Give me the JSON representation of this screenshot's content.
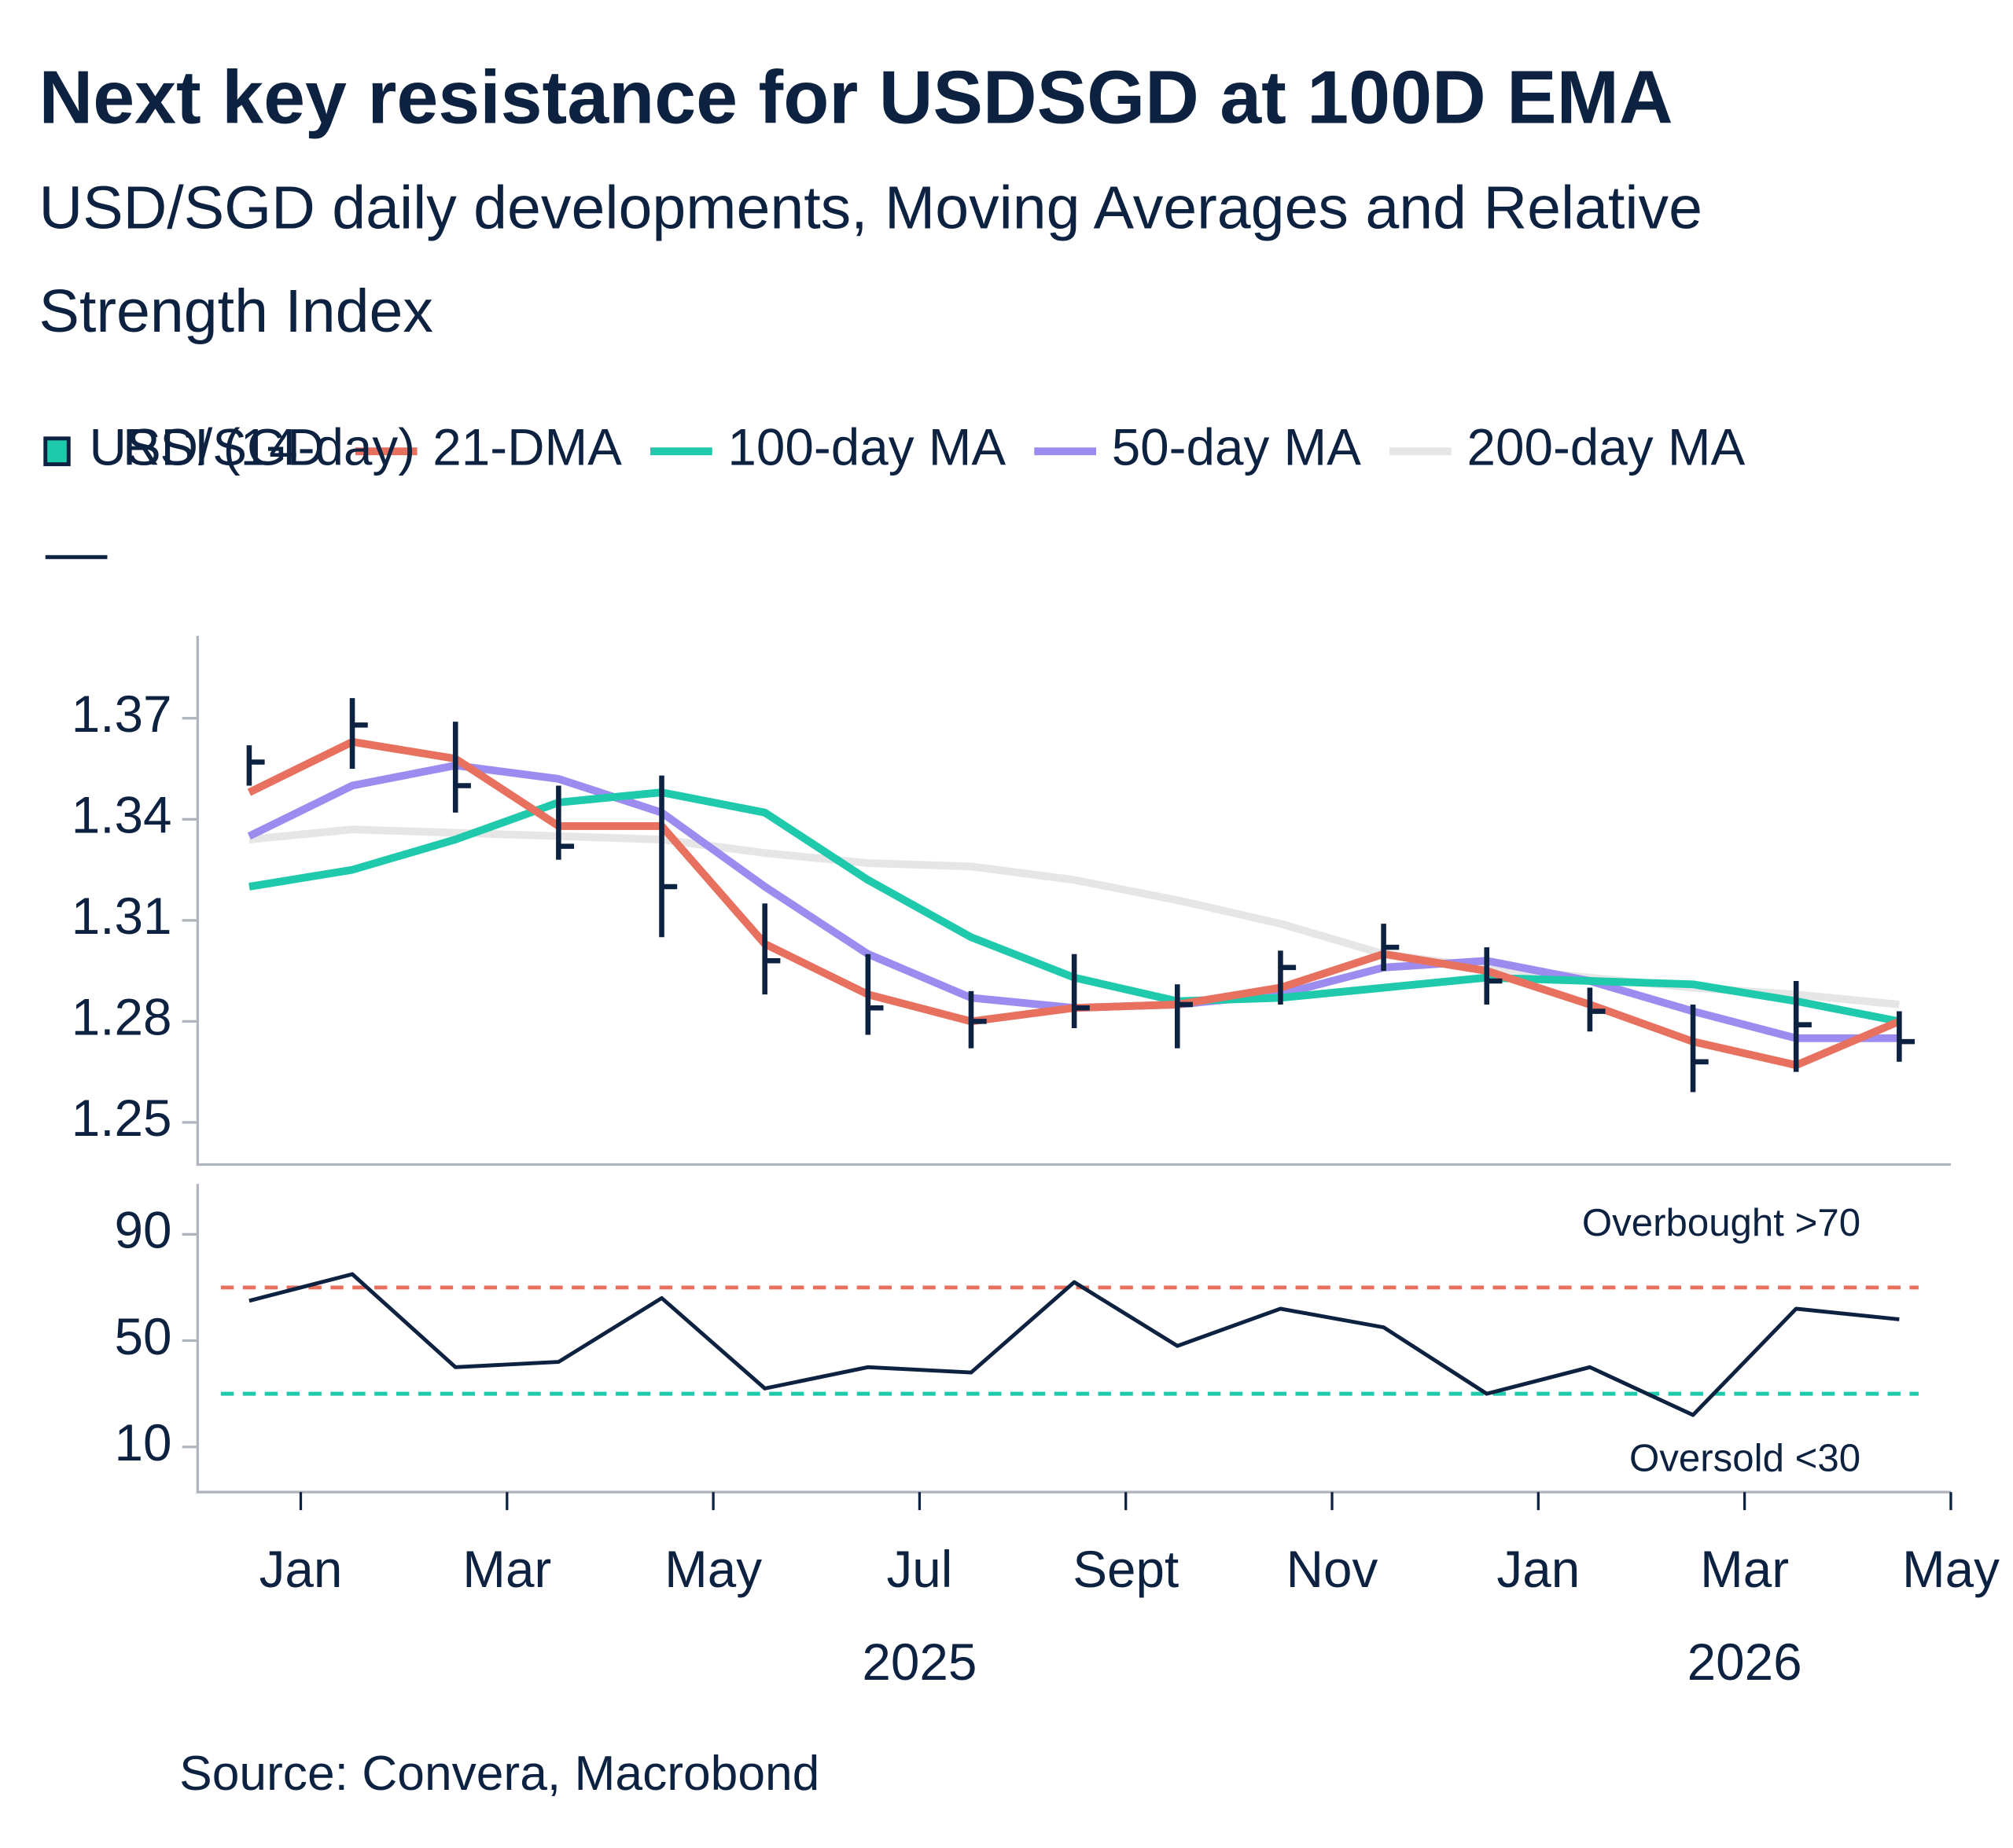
{
  "chart_data": [
    {
      "type": "ohlc",
      "title": "Next key resistance for USDSGD at 100D EMA",
      "subtitle": "USD/SGD daily developments, Moving Averages and Relative Strength Index",
      "source": "Source: Convera, Macrobond",
      "x": [
        "2024-12",
        "2025-01",
        "2025-02",
        "2025-03",
        "2025-04",
        "2025-05",
        "2025-06",
        "2025-07",
        "2025-08",
        "2025-09",
        "2025-10",
        "2025-11",
        "2025-12",
        "2026-01",
        "2026-02",
        "2026-03",
        "2026-04"
      ],
      "xlim": [
        "2024-12",
        "2026-05"
      ],
      "ylim": [
        1.2375,
        1.3945
      ],
      "yticks": [
        1.25,
        1.28,
        1.31,
        1.34,
        1.37
      ],
      "series": [
        {
          "name": "USD/SGD",
          "type": "ohlc",
          "color": "#0d2240",
          "high": [
            1.362,
            1.376,
            1.369,
            1.35,
            1.353,
            1.315,
            1.3,
            1.289,
            1.3,
            1.291,
            1.301,
            1.309,
            1.302,
            1.29,
            1.285,
            1.292,
            1.283
          ],
          "low": [
            1.35,
            1.355,
            1.342,
            1.328,
            1.305,
            1.288,
            1.276,
            1.272,
            1.278,
            1.272,
            1.285,
            1.295,
            1.285,
            1.277,
            1.259,
            1.265,
            1.268
          ],
          "close": [
            1.357,
            1.368,
            1.35,
            1.332,
            1.32,
            1.298,
            1.284,
            1.28,
            1.284,
            1.285,
            1.296,
            1.302,
            1.292,
            1.283,
            1.268,
            1.279,
            1.274
          ]
        },
        {
          "name": "21-DMA",
          "type": "line",
          "color": "#e8705f",
          "values": [
            1.348,
            1.363,
            1.358,
            1.338,
            1.338,
            1.303,
            1.288,
            1.28,
            1.284,
            1.285,
            1.29,
            1.3,
            1.295,
            1.285,
            1.274,
            1.267,
            1.28
          ]
        },
        {
          "name": "100-day MA",
          "type": "line",
          "color": "#1fc9ab",
          "values": [
            1.32,
            1.325,
            1.334,
            1.345,
            1.348,
            1.342,
            1.322,
            1.305,
            1.293,
            1.286,
            1.287,
            1.29,
            1.293,
            1.292,
            1.291,
            1.286,
            1.28
          ]
        },
        {
          "name": "50-day MA",
          "type": "line",
          "color": "#9c8cf0",
          "values": [
            1.335,
            1.35,
            1.356,
            1.352,
            1.342,
            1.32,
            1.3,
            1.287,
            1.284,
            1.285,
            1.288,
            1.296,
            1.298,
            1.292,
            1.283,
            1.275,
            1.275
          ]
        },
        {
          "name": "200-day MA",
          "type": "line",
          "color": "#e6e6e6",
          "values": [
            1.334,
            1.337,
            1.336,
            1.335,
            1.334,
            1.33,
            1.327,
            1.326,
            1.322,
            1.316,
            1.309,
            1.3,
            1.296,
            1.293,
            1.29,
            1.288,
            1.285
          ]
        }
      ]
    },
    {
      "type": "line",
      "x": [
        "2024-12",
        "2025-01",
        "2025-02",
        "2025-03",
        "2025-04",
        "2025-05",
        "2025-06",
        "2025-07",
        "2025-08",
        "2025-09",
        "2025-10",
        "2025-11",
        "2025-12",
        "2026-01",
        "2026-02",
        "2026-03",
        "2026-04"
      ],
      "xlim": [
        "2024-12",
        "2026-05"
      ],
      "ylim": [
        -7,
        109
      ],
      "yticks": [
        10,
        50,
        90
      ],
      "xticks": [
        {
          "value": "2025-01",
          "label": "Jan"
        },
        {
          "value": "2025-03",
          "label": "Mar"
        },
        {
          "value": "2025-05",
          "label": "May"
        },
        {
          "value": "2025-07",
          "label": "Jul"
        },
        {
          "value": "2025-09",
          "label": "Sept"
        },
        {
          "value": "2025-11",
          "label": "Nov"
        },
        {
          "value": "2026-01",
          "label": "Jan"
        },
        {
          "value": "2026-03",
          "label": "Mar"
        },
        {
          "value": "2026-05",
          "label": "May"
        }
      ],
      "year_labels": [
        {
          "value": "2025-07",
          "label": "2025"
        },
        {
          "value": "2026-03",
          "label": "2026"
        }
      ],
      "levels": [
        {
          "value": 70,
          "label": "Overbought >70",
          "color": "#e8705f"
        },
        {
          "value": 30,
          "label": "Oversold <30",
          "color": "#1fc9ab"
        }
      ],
      "series": [
        {
          "name": "RSI (14-day)",
          "color": "#0d2240",
          "values": [
            65,
            75,
            40,
            42,
            66,
            32,
            40,
            38,
            72,
            48,
            62,
            55,
            30,
            40,
            22,
            62,
            58
          ]
        }
      ]
    }
  ]
}
